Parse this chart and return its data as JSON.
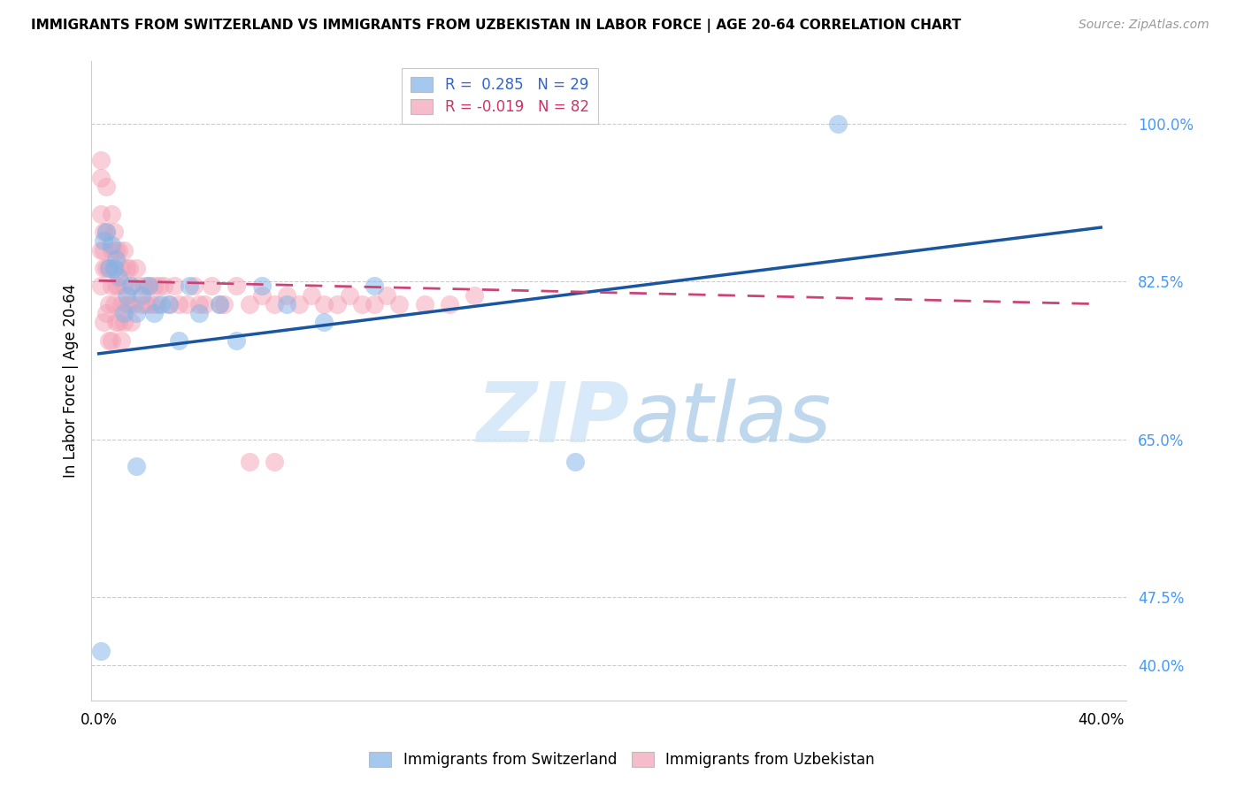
{
  "title": "IMMIGRANTS FROM SWITZERLAND VS IMMIGRANTS FROM UZBEKISTAN IN LABOR FORCE | AGE 20-64 CORRELATION CHART",
  "source": "Source: ZipAtlas.com",
  "ylabel": "In Labor Force | Age 20-64",
  "r_switzerland": 0.285,
  "n_switzerland": 29,
  "r_uzbekistan": -0.019,
  "n_uzbekistan": 82,
  "color_switzerland": "#7fb3e8",
  "color_uzbekistan": "#f4a0b5",
  "line_color_switzerland": "#1a55a0",
  "line_color_uzbekistan": "#cc4477",
  "xlim": [
    -0.003,
    0.41
  ],
  "ylim": [
    0.36,
    1.07
  ],
  "ytick_positions": [
    0.4,
    0.475,
    0.65,
    0.825,
    1.0
  ],
  "ytick_labels": [
    "40.0%",
    "47.5%",
    "65.0%",
    "82.5%",
    "100.0%"
  ],
  "xtick_positions": [
    0.0,
    0.05,
    0.1,
    0.15,
    0.2,
    0.25,
    0.3,
    0.35,
    0.4
  ],
  "xtick_labels": [
    "0.0%",
    "",
    "",
    "",
    "",
    "",
    "",
    "",
    "40.0%"
  ],
  "switzerland_x": [
    0.001,
    0.002,
    0.003,
    0.004,
    0.005,
    0.006,
    0.007,
    0.008,
    0.01,
    0.011,
    0.013,
    0.015,
    0.017,
    0.02,
    0.022,
    0.025,
    0.028,
    0.032,
    0.036,
    0.04,
    0.048,
    0.055,
    0.065,
    0.075,
    0.09,
    0.11,
    0.19,
    0.295,
    0.015
  ],
  "switzerland_y": [
    0.415,
    0.87,
    0.88,
    0.84,
    0.865,
    0.84,
    0.85,
    0.83,
    0.79,
    0.81,
    0.82,
    0.79,
    0.81,
    0.82,
    0.79,
    0.8,
    0.8,
    0.76,
    0.82,
    0.79,
    0.8,
    0.76,
    0.82,
    0.8,
    0.78,
    0.82,
    0.625,
    1.0,
    0.62
  ],
  "uzbekistan_x": [
    0.001,
    0.001,
    0.001,
    0.001,
    0.001,
    0.002,
    0.002,
    0.002,
    0.002,
    0.003,
    0.003,
    0.003,
    0.003,
    0.004,
    0.004,
    0.004,
    0.005,
    0.005,
    0.005,
    0.005,
    0.006,
    0.006,
    0.006,
    0.007,
    0.007,
    0.007,
    0.008,
    0.008,
    0.008,
    0.009,
    0.009,
    0.009,
    0.01,
    0.01,
    0.01,
    0.011,
    0.011,
    0.012,
    0.012,
    0.013,
    0.013,
    0.014,
    0.015,
    0.016,
    0.017,
    0.018,
    0.019,
    0.02,
    0.021,
    0.022,
    0.023,
    0.024,
    0.026,
    0.028,
    0.03,
    0.032,
    0.035,
    0.038,
    0.04,
    0.042,
    0.045,
    0.048,
    0.05,
    0.055,
    0.06,
    0.065,
    0.07,
    0.075,
    0.08,
    0.085,
    0.09,
    0.095,
    0.1,
    0.105,
    0.11,
    0.115,
    0.12,
    0.13,
    0.14,
    0.15,
    0.06,
    0.07
  ],
  "uzbekistan_y": [
    0.82,
    0.86,
    0.9,
    0.94,
    0.96,
    0.88,
    0.86,
    0.84,
    0.78,
    0.88,
    0.84,
    0.79,
    0.93,
    0.84,
    0.8,
    0.76,
    0.9,
    0.86,
    0.82,
    0.76,
    0.88,
    0.84,
    0.8,
    0.86,
    0.82,
    0.78,
    0.86,
    0.82,
    0.78,
    0.84,
    0.8,
    0.76,
    0.86,
    0.82,
    0.78,
    0.84,
    0.8,
    0.84,
    0.8,
    0.82,
    0.78,
    0.8,
    0.84,
    0.82,
    0.8,
    0.82,
    0.8,
    0.82,
    0.8,
    0.82,
    0.8,
    0.82,
    0.82,
    0.8,
    0.82,
    0.8,
    0.8,
    0.82,
    0.8,
    0.8,
    0.82,
    0.8,
    0.8,
    0.82,
    0.8,
    0.81,
    0.8,
    0.81,
    0.8,
    0.81,
    0.8,
    0.8,
    0.81,
    0.8,
    0.8,
    0.81,
    0.8,
    0.8,
    0.8,
    0.81,
    0.625,
    0.625
  ]
}
